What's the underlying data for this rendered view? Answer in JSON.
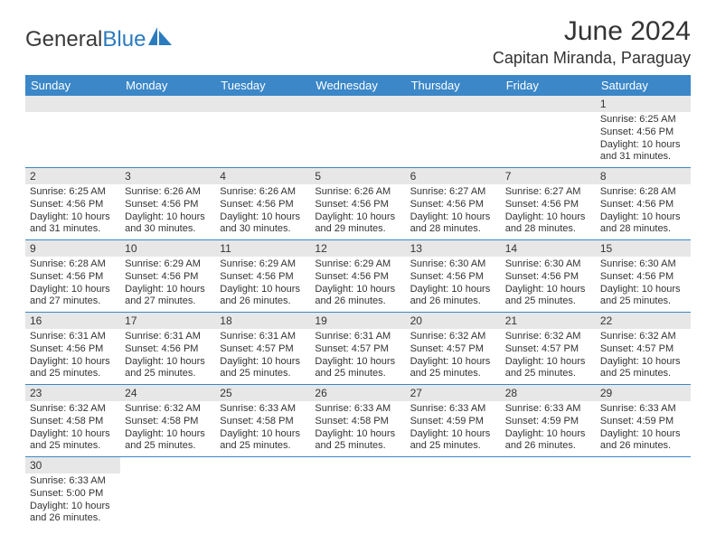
{
  "logo": {
    "text1": "General",
    "text2": "Blue",
    "sail_color": "#2b7bbf"
  },
  "header": {
    "title": "June 2024",
    "location": "Capitan Miranda, Paraguay"
  },
  "weekdays": [
    "Sunday",
    "Monday",
    "Tuesday",
    "Wednesday",
    "Thursday",
    "Friday",
    "Saturday"
  ],
  "colors": {
    "header_bg": "#3b87c8",
    "header_fg": "#ffffff",
    "daynum_bg": "#e7e7e7",
    "rule": "#3b87c8",
    "text": "#333333",
    "background": "#ffffff"
  },
  "weeks": [
    [
      null,
      null,
      null,
      null,
      null,
      null,
      {
        "n": "1",
        "sunrise": "6:25 AM",
        "sunset": "4:56 PM",
        "daylight": "10 hours and 31 minutes."
      }
    ],
    [
      {
        "n": "2",
        "sunrise": "6:25 AM",
        "sunset": "4:56 PM",
        "daylight": "10 hours and 31 minutes."
      },
      {
        "n": "3",
        "sunrise": "6:26 AM",
        "sunset": "4:56 PM",
        "daylight": "10 hours and 30 minutes."
      },
      {
        "n": "4",
        "sunrise": "6:26 AM",
        "sunset": "4:56 PM",
        "daylight": "10 hours and 30 minutes."
      },
      {
        "n": "5",
        "sunrise": "6:26 AM",
        "sunset": "4:56 PM",
        "daylight": "10 hours and 29 minutes."
      },
      {
        "n": "6",
        "sunrise": "6:27 AM",
        "sunset": "4:56 PM",
        "daylight": "10 hours and 28 minutes."
      },
      {
        "n": "7",
        "sunrise": "6:27 AM",
        "sunset": "4:56 PM",
        "daylight": "10 hours and 28 minutes."
      },
      {
        "n": "8",
        "sunrise": "6:28 AM",
        "sunset": "4:56 PM",
        "daylight": "10 hours and 28 minutes."
      }
    ],
    [
      {
        "n": "9",
        "sunrise": "6:28 AM",
        "sunset": "4:56 PM",
        "daylight": "10 hours and 27 minutes."
      },
      {
        "n": "10",
        "sunrise": "6:29 AM",
        "sunset": "4:56 PM",
        "daylight": "10 hours and 27 minutes."
      },
      {
        "n": "11",
        "sunrise": "6:29 AM",
        "sunset": "4:56 PM",
        "daylight": "10 hours and 26 minutes."
      },
      {
        "n": "12",
        "sunrise": "6:29 AM",
        "sunset": "4:56 PM",
        "daylight": "10 hours and 26 minutes."
      },
      {
        "n": "13",
        "sunrise": "6:30 AM",
        "sunset": "4:56 PM",
        "daylight": "10 hours and 26 minutes."
      },
      {
        "n": "14",
        "sunrise": "6:30 AM",
        "sunset": "4:56 PM",
        "daylight": "10 hours and 25 minutes."
      },
      {
        "n": "15",
        "sunrise": "6:30 AM",
        "sunset": "4:56 PM",
        "daylight": "10 hours and 25 minutes."
      }
    ],
    [
      {
        "n": "16",
        "sunrise": "6:31 AM",
        "sunset": "4:56 PM",
        "daylight": "10 hours and 25 minutes."
      },
      {
        "n": "17",
        "sunrise": "6:31 AM",
        "sunset": "4:56 PM",
        "daylight": "10 hours and 25 minutes."
      },
      {
        "n": "18",
        "sunrise": "6:31 AM",
        "sunset": "4:57 PM",
        "daylight": "10 hours and 25 minutes."
      },
      {
        "n": "19",
        "sunrise": "6:31 AM",
        "sunset": "4:57 PM",
        "daylight": "10 hours and 25 minutes."
      },
      {
        "n": "20",
        "sunrise": "6:32 AM",
        "sunset": "4:57 PM",
        "daylight": "10 hours and 25 minutes."
      },
      {
        "n": "21",
        "sunrise": "6:32 AM",
        "sunset": "4:57 PM",
        "daylight": "10 hours and 25 minutes."
      },
      {
        "n": "22",
        "sunrise": "6:32 AM",
        "sunset": "4:57 PM",
        "daylight": "10 hours and 25 minutes."
      }
    ],
    [
      {
        "n": "23",
        "sunrise": "6:32 AM",
        "sunset": "4:58 PM",
        "daylight": "10 hours and 25 minutes."
      },
      {
        "n": "24",
        "sunrise": "6:32 AM",
        "sunset": "4:58 PM",
        "daylight": "10 hours and 25 minutes."
      },
      {
        "n": "25",
        "sunrise": "6:33 AM",
        "sunset": "4:58 PM",
        "daylight": "10 hours and 25 minutes."
      },
      {
        "n": "26",
        "sunrise": "6:33 AM",
        "sunset": "4:58 PM",
        "daylight": "10 hours and 25 minutes."
      },
      {
        "n": "27",
        "sunrise": "6:33 AM",
        "sunset": "4:59 PM",
        "daylight": "10 hours and 25 minutes."
      },
      {
        "n": "28",
        "sunrise": "6:33 AM",
        "sunset": "4:59 PM",
        "daylight": "10 hours and 26 minutes."
      },
      {
        "n": "29",
        "sunrise": "6:33 AM",
        "sunset": "4:59 PM",
        "daylight": "10 hours and 26 minutes."
      }
    ],
    [
      {
        "n": "30",
        "sunrise": "6:33 AM",
        "sunset": "5:00 PM",
        "daylight": "10 hours and 26 minutes."
      },
      null,
      null,
      null,
      null,
      null,
      null
    ]
  ],
  "labels": {
    "sunrise": "Sunrise: ",
    "sunset": "Sunset: ",
    "daylight": "Daylight: "
  }
}
